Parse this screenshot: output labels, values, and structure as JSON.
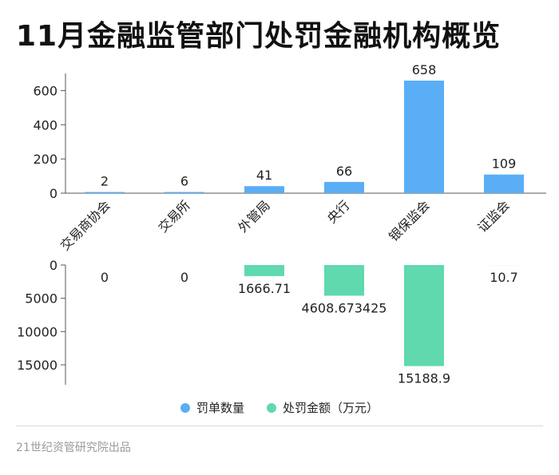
{
  "colors": {
    "count": "#5aaef5",
    "fine": "#5fd9ad",
    "axis": "#555555",
    "text": "#222222"
  },
  "page": {
    "source": "21世纪资管研究院出品"
  },
  "chart_data": {
    "title": "11月金融监管部门处罚金融机构概览",
    "type": "bar",
    "categories": [
      "交易商协会",
      "交易所",
      "外管局",
      "央行",
      "银保监会",
      "证监会"
    ],
    "series": [
      {
        "name": "罚单数量",
        "values": [
          2,
          6,
          41,
          66,
          658,
          109
        ],
        "labels": [
          "2",
          "6",
          "41",
          "66",
          "658",
          "109"
        ],
        "color": "#5aaef5"
      },
      {
        "name": "处罚金额（万元）",
        "values": [
          0,
          0,
          1666.71,
          4608.673425,
          15188.9,
          10.7
        ],
        "labels": [
          "0",
          "0",
          "1666.71",
          "4608.673425",
          "15188.9",
          "10.7"
        ],
        "color": "#5fd9ad",
        "direction": "downward"
      }
    ],
    "top_axis": {
      "ylim": [
        0,
        700
      ],
      "ticks": [
        0,
        200,
        400,
        600
      ]
    },
    "bottom_axis": {
      "ylim": [
        0,
        18000
      ],
      "ticks": [
        0,
        5000,
        10000,
        15000
      ],
      "inverted": true
    },
    "legend": "bottom-center",
    "grid": false
  }
}
